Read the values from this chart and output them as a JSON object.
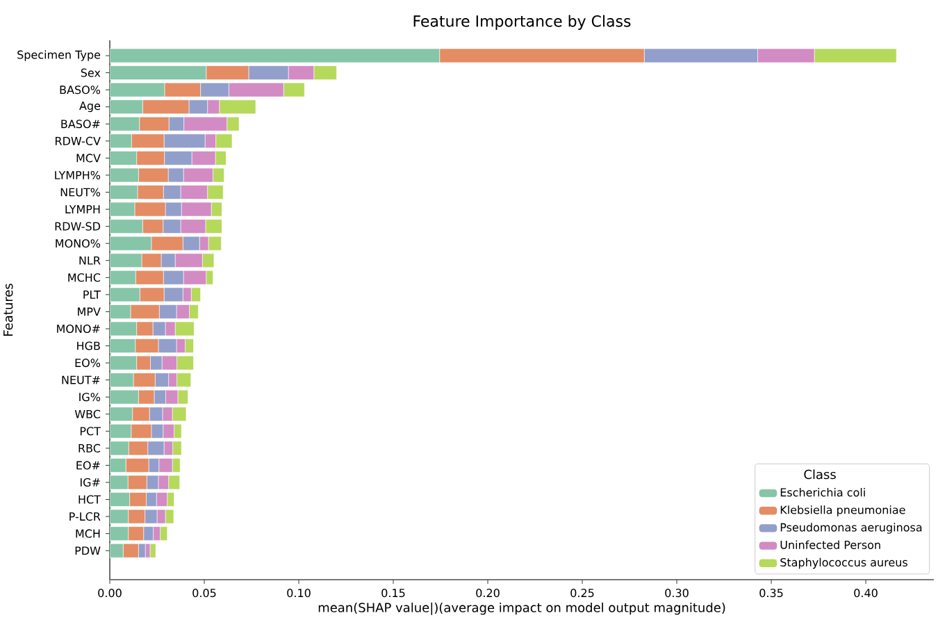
{
  "chart_data": {
    "type": "bar",
    "orientation": "horizontal",
    "stacked": true,
    "title": "Feature Importance by Class",
    "xlabel": "mean(SHAP value|)(average impact on model output magnitude)",
    "ylabel": "Features",
    "legend_title": "Class",
    "legend": "bottom right",
    "grid": false,
    "categories": [
      "Specimen Type",
      "Sex",
      "BASO%",
      "Age",
      "BASO#",
      "RDW-CV",
      "MCV",
      "LYMPH%",
      "NEUT%",
      "LYMPH",
      "RDW-SD",
      "MONO%",
      "NLR",
      "MCHC",
      "PLT",
      "MPV",
      "MONO#",
      "HGB",
      "EO%",
      "NEUT#",
      "IG%",
      "WBC",
      "PCT",
      "RBC",
      "EO#",
      "IG#",
      "HCT",
      "P-LCR",
      "MCH",
      "PDW"
    ],
    "xlim": [
      0,
      0.436
    ],
    "xticks": [
      {
        "value": 0,
        "label": "0.00"
      },
      {
        "value": 0.05,
        "label": "0.05"
      },
      {
        "value": 0.1,
        "label": "0.10"
      },
      {
        "value": 0.15,
        "label": "0.15"
      },
      {
        "value": 0.2,
        "label": "0.20"
      },
      {
        "value": 0.25,
        "label": "0.25"
      },
      {
        "value": 0.3,
        "label": "0.30"
      },
      {
        "value": 0.35,
        "label": "0.35"
      },
      {
        "value": 0.4,
        "label": "0.40"
      }
    ],
    "series": [
      {
        "name": "Escherichia coli",
        "color": "#86c5a8",
        "values": [
          0.1745,
          0.051,
          0.029,
          0.0174,
          0.0157,
          0.0115,
          0.0142,
          0.0152,
          0.0147,
          0.0132,
          0.0174,
          0.022,
          0.0169,
          0.0137,
          0.0159,
          0.011,
          0.0142,
          0.0135,
          0.0142,
          0.0125,
          0.0152,
          0.012,
          0.0113,
          0.01,
          0.0085,
          0.0096,
          0.0105,
          0.0098,
          0.0098,
          0.0071
        ]
      },
      {
        "name": "Klebsiella pneumoniae",
        "color": "#e48c63",
        "values": [
          0.1083,
          0.0225,
          0.019,
          0.0245,
          0.0156,
          0.0172,
          0.0147,
          0.0157,
          0.0137,
          0.0162,
          0.0108,
          0.0167,
          0.0103,
          0.0147,
          0.0128,
          0.0152,
          0.0086,
          0.0122,
          0.0073,
          0.0115,
          0.0083,
          0.009,
          0.0107,
          0.0101,
          0.0121,
          0.01,
          0.0088,
          0.0088,
          0.0081,
          0.0081
        ]
      },
      {
        "name": "Pseudomonas aeruginosa",
        "color": "#929fcb",
        "values": [
          0.06,
          0.021,
          0.015,
          0.0098,
          0.0079,
          0.0217,
          0.0145,
          0.0081,
          0.0091,
          0.0085,
          0.0093,
          0.0088,
          0.0074,
          0.0106,
          0.01,
          0.0091,
          0.0066,
          0.0096,
          0.0061,
          0.0071,
          0.0061,
          0.0069,
          0.0062,
          0.0086,
          0.0054,
          0.0061,
          0.0054,
          0.0064,
          0.0051,
          0.0036
        ]
      },
      {
        "name": "Uninfected Person",
        "color": "#d38bc4",
        "values": [
          0.03,
          0.0135,
          0.029,
          0.0063,
          0.0228,
          0.0057,
          0.0125,
          0.0156,
          0.0142,
          0.0158,
          0.0132,
          0.0047,
          0.0144,
          0.012,
          0.0044,
          0.0068,
          0.0052,
          0.0046,
          0.0079,
          0.0044,
          0.0064,
          0.0052,
          0.0058,
          0.0046,
          0.0071,
          0.0054,
          0.0057,
          0.0044,
          0.0037,
          0.0025
        ]
      },
      {
        "name": "Staphylococcus aureus",
        "color": "#b5d95b",
        "values": [
          0.0434,
          0.012,
          0.011,
          0.0192,
          0.0064,
          0.0086,
          0.0056,
          0.0059,
          0.0083,
          0.0056,
          0.0086,
          0.0068,
          0.0061,
          0.0036,
          0.0049,
          0.0047,
          0.01,
          0.0044,
          0.0088,
          0.0074,
          0.0054,
          0.0073,
          0.0039,
          0.0046,
          0.0041,
          0.0059,
          0.0036,
          0.0044,
          0.0037,
          0.003
        ]
      }
    ]
  }
}
